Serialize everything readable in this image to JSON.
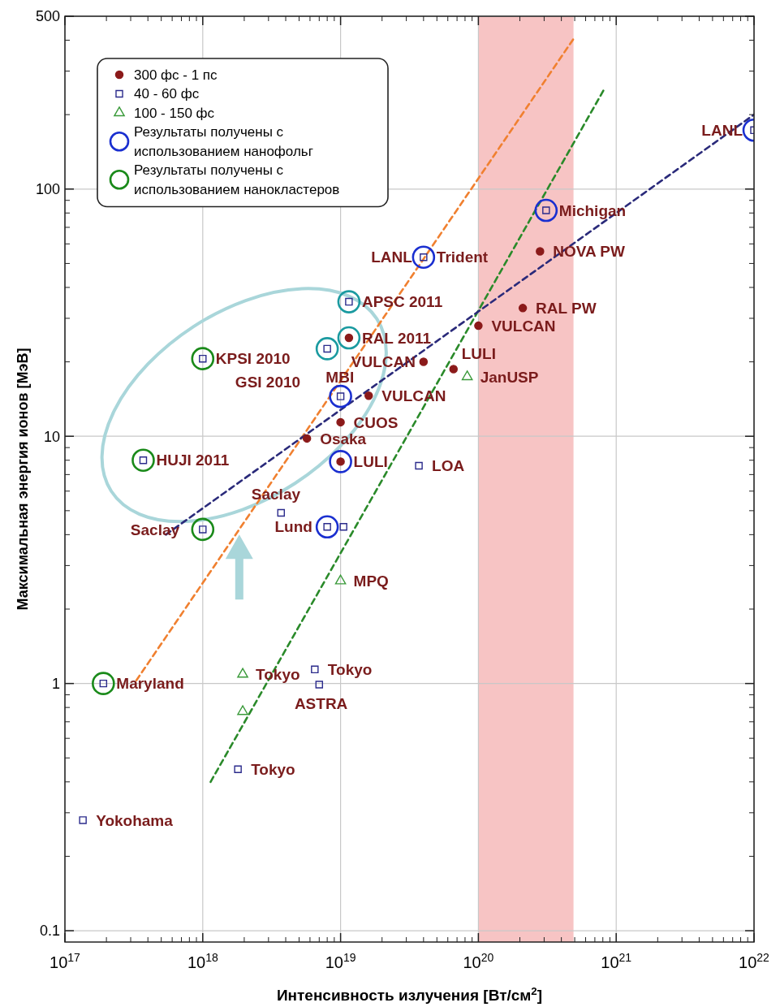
{
  "chart_data": {
    "type": "scatter",
    "xlabel": "Интенсивность излучения [Вт/см$^{2}$]",
    "ylabel": "Максимальная энергия ионов [МэВ]",
    "log": "xy",
    "grid": true,
    "legend": "top left",
    "xlim": [
      1e+17,
      1e+22
    ],
    "ylim": [
      0.09,
      500
    ],
    "xticks": [
      {
        "value": 1e+17,
        "label": "10$^{17}$"
      },
      {
        "value": 1e+18,
        "label": "10$^{18}$"
      },
      {
        "value": 1e+19,
        "label": "10$^{19}$"
      },
      {
        "value": 1e+20,
        "label": "10$^{20}$"
      },
      {
        "value": 1e+21,
        "label": "10$^{21}$"
      },
      {
        "value": 1e+22,
        "label": "10$^{22}$"
      }
    ],
    "yticks": [
      0.1,
      1,
      10,
      100,
      500
    ],
    "bands": [
      {
        "axis": "x",
        "from": 1e+20,
        "to": 4.9e+20,
        "color": "#f7c4c4"
      }
    ],
    "series": [
      {
        "name": "300 фс - 1 пс",
        "marker": "circle",
        "color": "#8b1a1a",
        "x": [
          1.15e+19,
          1e+20,
          2.1e+20,
          2.8e+20,
          4e+19,
          6.6e+19,
          1.6e+19,
          1e+19,
          5.7e+18,
          1e+19
        ],
        "values": [
          25,
          28,
          33,
          56,
          20,
          18.7,
          14.6,
          11.4,
          9.8,
          7.9
        ]
      },
      {
        "name": "40 - 60 фс",
        "marker": "square",
        "color": "#2b2b8c",
        "x": [
          1e+22,
          3.1e+20,
          4e+19,
          1.15e+19,
          8e+18,
          1e+18,
          1e+19,
          3.7e+17,
          3.7e+19,
          3.7e+18,
          8e+18,
          1.05e+19,
          1e+18,
          1.9e+17,
          6.5e+18,
          7e+18,
          1.8e+18,
          1.35e+17
        ],
        "values": [
          173,
          82,
          53,
          35,
          22.6,
          20.6,
          14.5,
          8,
          7.6,
          4.9,
          4.3,
          4.3,
          4.2,
          1,
          1.14,
          0.99,
          0.45,
          0.28
        ]
      },
      {
        "name": "100 - 150 фс",
        "marker": "triangle",
        "color": "#3a9a3a",
        "x": [
          8.3e+19,
          1e+19,
          1.95e+18,
          1.95e+18
        ],
        "values": [
          17.4,
          2.6,
          1.09,
          0.77
        ]
      },
      {
        "name": "Результаты получены с использованием нанофольг",
        "type": "bubble",
        "color": "#1a2fd0",
        "x": [
          1e+22,
          3.1e+20,
          4e+19,
          1e+19,
          1e+19,
          8e+18
        ],
        "values": [
          173,
          82,
          53,
          14.5,
          7.9,
          4.3
        ],
        "sizes": [
          1,
          1,
          1,
          1,
          1,
          1
        ]
      },
      {
        "name": "Результаты получены с использованием нанокластеров",
        "type": "bubble",
        "color": "#1a8a1a",
        "x": [
          1e+18,
          3.7e+17,
          1e+18,
          1.9e+17
        ],
        "values": [
          20.6,
          8,
          4.2,
          1
        ],
        "sizes": [
          1,
          1,
          1,
          1
        ]
      },
      {
        "type": "bubble",
        "color": "#1a9aa0",
        "x": [
          1.15e+19,
          1.15e+19,
          8e+18
        ],
        "values": [
          35,
          25,
          22.6
        ],
        "sizes": [
          1,
          1,
          1
        ]
      },
      {
        "type": "line",
        "line_style": "dashed",
        "color": "#f08030",
        "x": [
          3.3e+17,
          4.9e+20
        ],
        "values": [
          1.03,
          405
        ]
      },
      {
        "type": "line",
        "line_style": "dashed",
        "color": "#2a8a2a",
        "x": [
          1.14e+18,
          8.2e+20
        ],
        "values": [
          0.4,
          254
        ]
      },
      {
        "type": "line",
        "line_style": "dashed",
        "color": "#2a2a7a",
        "x": [
          5.4e+17,
          1e+22
        ],
        "values": [
          4,
          200
        ]
      }
    ],
    "annotations": [
      {
        "text": "LANL",
        "x": 1e+22,
        "y": 173
      },
      {
        "text": "Michigan",
        "x": 3.1e+20,
        "y": 82
      },
      {
        "text": "Trident",
        "x": 4e+19,
        "y": 53
      },
      {
        "text": "LANL",
        "x": 4e+19,
        "y": 53
      },
      {
        "text": "NOVA PW",
        "x": 2.8e+20,
        "y": 56
      },
      {
        "text": "APSC 2011",
        "x": 1.15e+19,
        "y": 35
      },
      {
        "text": "VULCAN",
        "x": 1e+20,
        "y": 28
      },
      {
        "text": "RAL PW",
        "x": 2.1e+20,
        "y": 33
      },
      {
        "text": "RAL 2011",
        "x": 1.15e+19,
        "y": 25
      },
      {
        "text": "KPSI 2010",
        "x": 1e+18,
        "y": 20.6
      },
      {
        "text": "VULCAN",
        "x": 4e+19,
        "y": 20
      },
      {
        "text": "GSI 2010",
        "x": 8e+18,
        "y": 22.6
      },
      {
        "text": "LULI",
        "x": 6.6e+19,
        "y": 18.7
      },
      {
        "text": "MBI",
        "x": 1e+19,
        "y": 14.5
      },
      {
        "text": "JanUSP",
        "x": 8.3e+19,
        "y": 17.4
      },
      {
        "text": "VULCAN",
        "x": 1.6e+19,
        "y": 14.6
      },
      {
        "text": "HUJI 2011",
        "x": 3.7e+17,
        "y": 8
      },
      {
        "text": "CUOS",
        "x": 1e+19,
        "y": 11.4
      },
      {
        "text": "Osaka",
        "x": 5.7e+18,
        "y": 9.8
      },
      {
        "text": "LOA",
        "x": 3.7e+19,
        "y": 7.6
      },
      {
        "text": "LULI",
        "x": 1e+19,
        "y": 7.9
      },
      {
        "text": "Saclay",
        "x": 3.7e+18,
        "y": 4.9
      },
      {
        "text": "Lund",
        "x": 8e+18,
        "y": 4.3
      },
      {
        "text": "Saclay",
        "x": 1e+18,
        "y": 4.2
      },
      {
        "text": "MPQ",
        "x": 1e+19,
        "y": 2.6
      },
      {
        "text": "Tokyo",
        "x": 6.5e+18,
        "y": 1.14
      },
      {
        "text": "Tokyo",
        "x": 1.95e+18,
        "y": 1.09
      },
      {
        "text": "ASTRA",
        "x": 7e+18,
        "y": 0.99
      },
      {
        "text": "Maryland",
        "x": 1.9e+17,
        "y": 1
      },
      {
        "text": "Tokyo",
        "x": 1.8e+18,
        "y": 0.45
      },
      {
        "text": "Yokohama",
        "x": 1.35e+17,
        "y": 0.28
      }
    ]
  }
}
